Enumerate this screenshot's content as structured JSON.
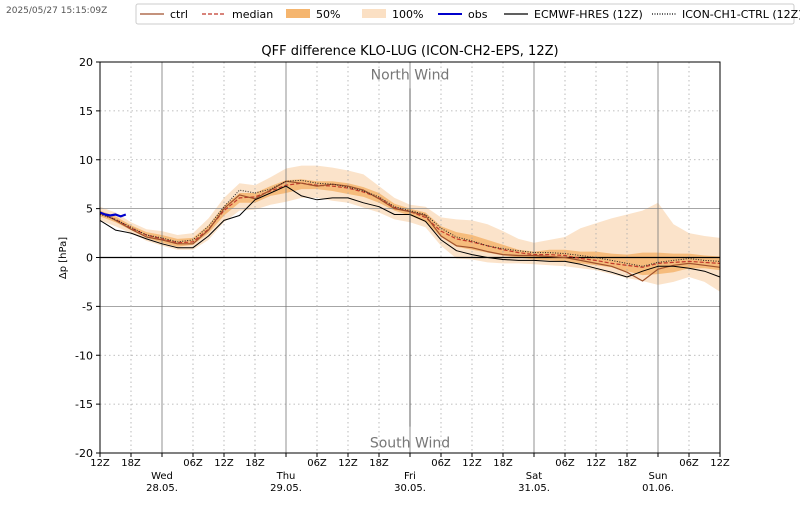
{
  "timestamp": "2025/05/27 15:15:09Z",
  "chart_data": {
    "type": "line",
    "title": "QFF difference KLO-LUG (ICON-CH2-EPS, 12Z)",
    "ylabel": "Δp [hPa]",
    "xlabel": "",
    "ylim": [
      -20,
      20
    ],
    "xlim": [
      0,
      120
    ],
    "x_unit": "hours since Tue 27.05. 12Z",
    "grid": true,
    "legend_position": "top",
    "annotations": [
      {
        "text": "North Wind",
        "x": 60,
        "y": 18.8
      },
      {
        "text": "South Wind",
        "x": 60,
        "y": -18.8
      }
    ],
    "y_ticks": [
      -20,
      -15,
      -10,
      -5,
      0,
      5,
      10,
      15,
      20
    ],
    "x_ticks": [
      {
        "x": 0,
        "label": "12Z"
      },
      {
        "x": 6,
        "label": "18Z"
      },
      {
        "x": 12,
        "label": "Wed\n28.05."
      },
      {
        "x": 18,
        "label": "06Z"
      },
      {
        "x": 24,
        "label": "12Z"
      },
      {
        "x": 30,
        "label": "18Z"
      },
      {
        "x": 36,
        "label": "Thu\n29.05."
      },
      {
        "x": 42,
        "label": "06Z"
      },
      {
        "x": 48,
        "label": "12Z"
      },
      {
        "x": 54,
        "label": "18Z"
      },
      {
        "x": 60,
        "label": "Fri\n30.05."
      },
      {
        "x": 66,
        "label": "06Z"
      },
      {
        "x": 72,
        "label": "12Z"
      },
      {
        "x": 78,
        "label": "18Z"
      },
      {
        "x": 84,
        "label": "Sat\n31.05."
      },
      {
        "x": 90,
        "label": "06Z"
      },
      {
        "x": 96,
        "label": "12Z"
      },
      {
        "x": 102,
        "label": "18Z"
      },
      {
        "x": 108,
        "label": "Sun\n01.06."
      },
      {
        "x": 114,
        "label": "06Z"
      },
      {
        "x": 120,
        "label": "12Z"
      }
    ],
    "legend": [
      {
        "label": "ctrl",
        "color": "#a0522d",
        "style": "solid"
      },
      {
        "label": "median",
        "color": "#c0392b",
        "style": "dashed"
      },
      {
        "label": "50%",
        "color": "#f5b56e",
        "style": "fill"
      },
      {
        "label": "100%",
        "color": "#fbe0c4",
        "style": "fill"
      },
      {
        "label": "obs",
        "color": "#0000cc",
        "style": "solid"
      },
      {
        "label": "ECMWF-HRES (12Z)",
        "color": "#000000",
        "style": "solid"
      },
      {
        "label": "ICON-CH1-CTRL (12Z)",
        "color": "#000000",
        "style": "dotted"
      }
    ],
    "series": [
      {
        "name": "100%",
        "kind": "band",
        "x": [
          0,
          3,
          6,
          9,
          12,
          15,
          18,
          21,
          24,
          27,
          30,
          33,
          36,
          39,
          42,
          45,
          48,
          51,
          54,
          57,
          60,
          63,
          66,
          69,
          72,
          75,
          78,
          81,
          84,
          87,
          90,
          93,
          96,
          99,
          102,
          105,
          108,
          111,
          114,
          117,
          120
        ],
        "lower": [
          3.8,
          3.2,
          2.5,
          1.7,
          1.2,
          0.8,
          0.8,
          1.8,
          3.6,
          4.8,
          4.9,
          5.4,
          5.7,
          6.1,
          6.1,
          5.8,
          5.6,
          5.1,
          4.6,
          3.9,
          3.6,
          3.1,
          1.2,
          -0.1,
          -0.2,
          -0.5,
          -0.6,
          -0.6,
          -0.7,
          -0.8,
          -0.9,
          -1.1,
          -1.3,
          -1.7,
          -2.1,
          -2.4,
          -2.8,
          -2.5,
          -2.0,
          -2.5,
          -3.5
        ],
        "upper": [
          5.2,
          4.6,
          3.6,
          2.9,
          2.7,
          2.3,
          2.5,
          4.0,
          6.1,
          7.6,
          7.4,
          8.2,
          9.1,
          9.4,
          9.4,
          9.2,
          8.9,
          8.5,
          7.3,
          6.1,
          5.4,
          5.2,
          4.1,
          3.9,
          3.8,
          3.4,
          2.7,
          1.9,
          1.5,
          1.8,
          2.1,
          3.0,
          3.5,
          4.0,
          4.4,
          4.8,
          5.6,
          3.4,
          2.5,
          2.2,
          2.0
        ]
      },
      {
        "name": "50%",
        "kind": "band",
        "x": [
          0,
          3,
          6,
          9,
          12,
          15,
          18,
          21,
          24,
          27,
          30,
          33,
          36,
          39,
          42,
          45,
          48,
          51,
          54,
          57,
          60,
          63,
          66,
          69,
          72,
          75,
          78,
          81,
          84,
          87,
          90,
          93,
          96,
          99,
          102,
          105,
          108,
          111,
          114,
          117,
          120
        ],
        "lower": [
          4.2,
          3.6,
          2.8,
          2.0,
          1.5,
          1.1,
          1.3,
          2.5,
          4.3,
          5.6,
          5.6,
          6.3,
          6.6,
          7.0,
          7.0,
          6.8,
          6.5,
          6.2,
          5.6,
          4.8,
          4.3,
          3.6,
          2.1,
          1.1,
          0.8,
          0.5,
          0.2,
          0.0,
          -0.2,
          -0.3,
          -0.4,
          -0.6,
          -0.8,
          -1.0,
          -1.4,
          -1.8,
          -1.7,
          -1.5,
          -1.1,
          -1.1,
          -1.3
        ],
        "upper": [
          4.8,
          4.2,
          3.3,
          2.6,
          2.3,
          1.9,
          2.0,
          3.3,
          5.3,
          6.6,
          6.6,
          7.3,
          7.9,
          8.0,
          7.8,
          7.8,
          7.6,
          7.2,
          6.6,
          5.5,
          5.0,
          4.6,
          3.2,
          2.6,
          2.3,
          1.8,
          1.3,
          0.8,
          0.6,
          0.8,
          0.8,
          0.6,
          0.6,
          0.4,
          0.3,
          0.5,
          0.5,
          0.4,
          0.4,
          0.2,
          0.1
        ]
      },
      {
        "name": "median",
        "kind": "line",
        "x": [
          0,
          3,
          6,
          9,
          12,
          15,
          18,
          21,
          24,
          27,
          30,
          33,
          36,
          39,
          42,
          45,
          48,
          51,
          54,
          57,
          60,
          63,
          66,
          69,
          72,
          75,
          78,
          81,
          84,
          87,
          90,
          93,
          96,
          99,
          102,
          105,
          108,
          111,
          114,
          117,
          120
        ],
        "y": [
          4.5,
          3.9,
          3.0,
          2.3,
          1.9,
          1.5,
          1.6,
          2.9,
          4.8,
          6.1,
          6.2,
          6.8,
          7.4,
          7.6,
          7.4,
          7.3,
          7.1,
          6.7,
          6.1,
          5.1,
          4.7,
          4.1,
          2.7,
          1.9,
          1.6,
          1.2,
          0.8,
          0.5,
          0.3,
          0.3,
          0.2,
          -0.1,
          -0.3,
          -0.6,
          -0.8,
          -1.0,
          -0.6,
          -0.5,
          -0.4,
          -0.5,
          -0.6
        ]
      },
      {
        "name": "ctrl",
        "kind": "line",
        "x": [
          0,
          3,
          6,
          9,
          12,
          15,
          18,
          21,
          24,
          27,
          30,
          33,
          36,
          39,
          42,
          45,
          48,
          51,
          54,
          57,
          60,
          63,
          66,
          69,
          72,
          75,
          78,
          81,
          84,
          87,
          90,
          93,
          96,
          99,
          102,
          105,
          108,
          111,
          114,
          117,
          120
        ],
        "y": [
          4.6,
          3.8,
          2.9,
          2.1,
          1.8,
          1.4,
          1.4,
          2.8,
          5.0,
          6.4,
          6.0,
          6.9,
          7.8,
          7.6,
          7.3,
          7.5,
          7.3,
          6.9,
          6.0,
          5.0,
          4.7,
          4.3,
          2.2,
          1.2,
          1.0,
          0.6,
          0.3,
          0.2,
          0.2,
          0.1,
          0.0,
          -0.3,
          -0.6,
          -0.9,
          -1.5,
          -2.4,
          -1.2,
          -0.8,
          -0.6,
          -0.8,
          -1.0
        ]
      },
      {
        "name": "obs",
        "kind": "line",
        "x": [
          0,
          1,
          2,
          3,
          4,
          5
        ],
        "y": [
          4.6,
          4.4,
          4.3,
          4.4,
          4.2,
          4.4
        ]
      },
      {
        "name": "ECMWF-HRES (12Z)",
        "kind": "line",
        "x": [
          0,
          3,
          6,
          9,
          12,
          15,
          18,
          21,
          24,
          27,
          30,
          33,
          36,
          39,
          42,
          45,
          48,
          51,
          54,
          57,
          60,
          63,
          66,
          69,
          72,
          75,
          78,
          81,
          84,
          87,
          90,
          93,
          96,
          99,
          102,
          105,
          108,
          111,
          114,
          117,
          120
        ],
        "y": [
          3.8,
          2.8,
          2.5,
          1.9,
          1.4,
          1.0,
          1.0,
          2.2,
          3.8,
          4.3,
          5.9,
          6.6,
          7.3,
          6.3,
          5.9,
          6.1,
          6.1,
          5.6,
          5.2,
          4.4,
          4.4,
          3.7,
          1.8,
          0.7,
          0.3,
          0.0,
          -0.2,
          -0.3,
          -0.3,
          -0.4,
          -0.4,
          -0.7,
          -1.1,
          -1.5,
          -2.0,
          -1.4,
          -0.9,
          -0.9,
          -1.1,
          -1.4,
          -2.0
        ]
      },
      {
        "name": "ICON-CH1-CTRL (12Z)",
        "kind": "line",
        "x": [
          0,
          3,
          6,
          9,
          12,
          15,
          18,
          21,
          24,
          27,
          30,
          33,
          36,
          39,
          42,
          45,
          48,
          51,
          54,
          57,
          60,
          63,
          66,
          69,
          72,
          75,
          78,
          81,
          84,
          87,
          90,
          93,
          96,
          99,
          102,
          105,
          108,
          111,
          114,
          117,
          120
        ],
        "y": [
          4.4,
          3.9,
          3.1,
          2.3,
          2.0,
          1.6,
          1.8,
          3.2,
          5.2,
          6.9,
          6.6,
          7.0,
          7.8,
          7.9,
          7.6,
          7.5,
          7.2,
          6.8,
          6.2,
          5.2,
          4.8,
          4.4,
          3.0,
          2.1,
          1.7,
          1.2,
          0.9,
          0.7,
          0.5,
          0.5,
          0.4,
          0.2,
          0.0,
          -0.3,
          -0.6,
          -0.9,
          -0.5,
          -0.3,
          -0.1,
          -0.3,
          -0.4
        ]
      }
    ]
  }
}
